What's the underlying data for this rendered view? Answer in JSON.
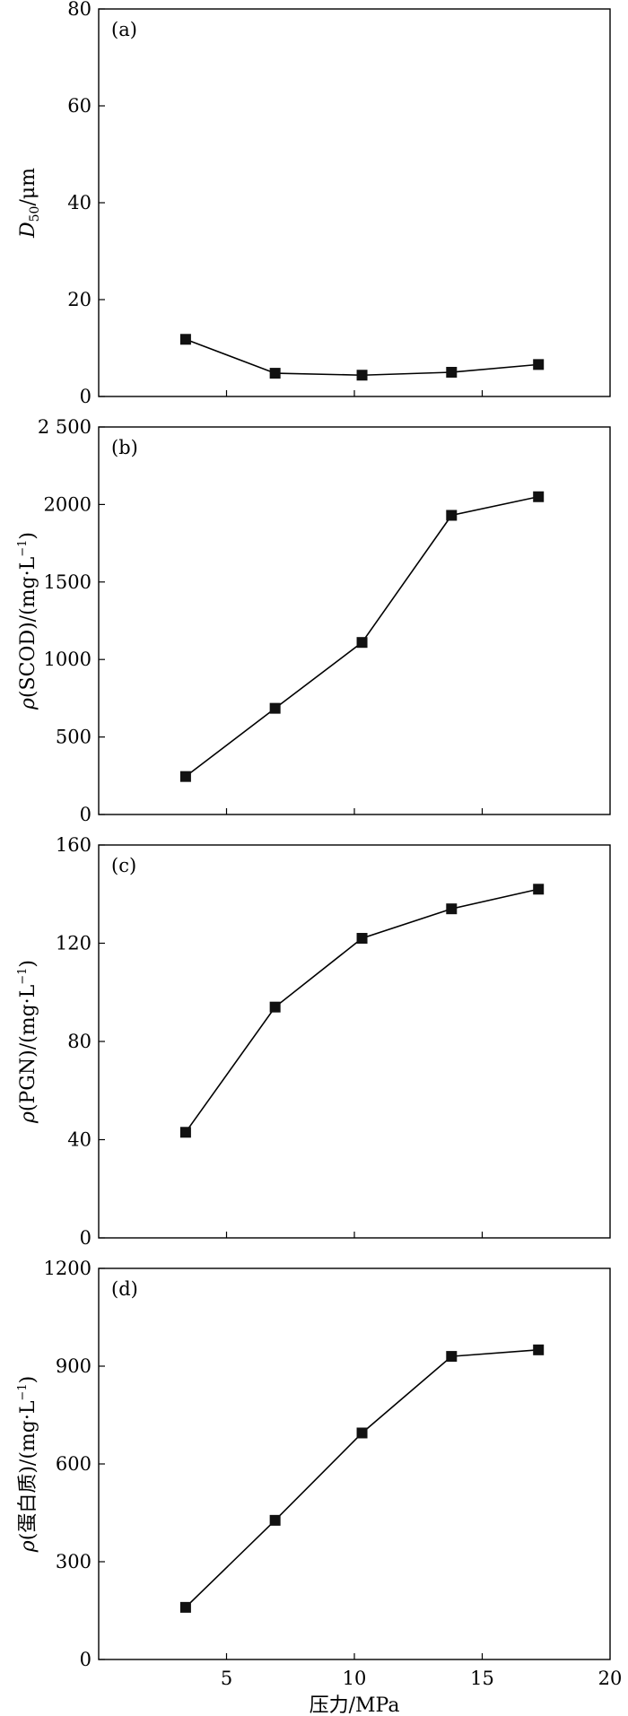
{
  "chart_data": [
    {
      "type": "line",
      "panel_label": "(a)",
      "ylabel_main": "D",
      "ylabel_sub": "50",
      "ylabel_rest": "/μm",
      "ylim": [
        0,
        80
      ],
      "yticks": [
        0,
        20,
        40,
        60,
        80
      ],
      "ytick_labels": [
        "0",
        "20",
        "40",
        "60",
        "80"
      ],
      "x": [
        3.4,
        6.9,
        10.3,
        13.8,
        17.2
      ],
      "y": [
        11.8,
        4.8,
        4.4,
        5.0,
        6.6
      ]
    },
    {
      "type": "line",
      "panel_label": "(b)",
      "ylabel_main": "ρ(SCOD)/(mg·L",
      "ylabel_sup": "−1",
      "ylabel_rest": ")",
      "ylim": [
        0,
        2500
      ],
      "yticks": [
        0,
        500,
        1000,
        1500,
        2000,
        2500
      ],
      "ytick_labels": [
        "0",
        "500",
        "1000",
        "1500",
        "2000",
        "2 500"
      ],
      "x": [
        3.4,
        6.9,
        10.3,
        13.8,
        17.2
      ],
      "y": [
        245,
        685,
        1110,
        1930,
        2050
      ]
    },
    {
      "type": "line",
      "panel_label": "(c)",
      "ylabel_main": "ρ(PGN)/(mg·L",
      "ylabel_sup": "−1",
      "ylabel_rest": ")",
      "ylim": [
        0,
        160
      ],
      "yticks": [
        0,
        40,
        80,
        120,
        160
      ],
      "ytick_labels": [
        "0",
        "40",
        "80",
        "120",
        "160"
      ],
      "x": [
        3.4,
        6.9,
        10.3,
        13.8,
        17.2
      ],
      "y": [
        43,
        94,
        122,
        134,
        142
      ]
    },
    {
      "type": "line",
      "panel_label": "(d)",
      "ylabel_main": "ρ(蛋白质)/(mg·L",
      "ylabel_sup": "−1",
      "ylabel_rest": ")",
      "ylim": [
        0,
        1200
      ],
      "yticks": [
        0,
        300,
        600,
        900,
        1200
      ],
      "ytick_labels": [
        "0",
        "300",
        "600",
        "900",
        "1200"
      ],
      "x": [
        3.4,
        6.9,
        10.3,
        13.8,
        17.2
      ],
      "y": [
        160,
        427,
        695,
        930,
        950
      ]
    }
  ],
  "xaxis": {
    "xlim": [
      0,
      20
    ],
    "ticks": [
      5,
      10,
      15,
      20
    ],
    "tick_labels": [
      "5",
      "10",
      "15",
      "20"
    ],
    "label": "压力/MPa"
  },
  "colors": {
    "line": "#000000",
    "marker": "#111111",
    "frame": "#000000"
  }
}
